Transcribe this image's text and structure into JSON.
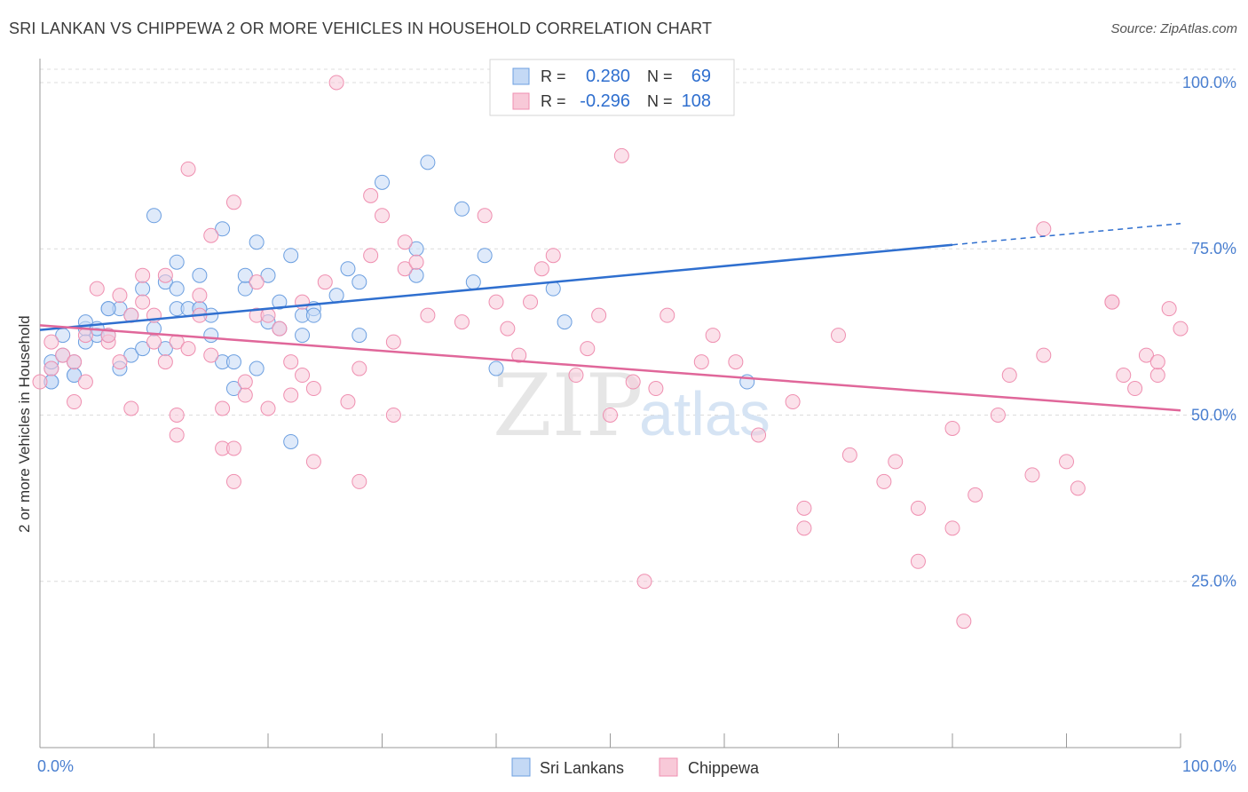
{
  "title": "SRI LANKAN VS CHIPPEWA 2 OR MORE VEHICLES IN HOUSEHOLD CORRELATION CHART",
  "source": "Source: ZipAtlas.com",
  "watermark": {
    "part1": "ZIP",
    "part2": "atlas"
  },
  "legend_box": {
    "rows": [
      {
        "r_label": "R =",
        "r_value": "0.280",
        "n_label": "N =",
        "n_value": "69",
        "color": "#6c9fe0"
      },
      {
        "r_label": "R =",
        "r_value": "-0.296",
        "n_label": "N =",
        "n_value": "108",
        "color": "#ef8fb0"
      }
    ]
  },
  "chart_data": {
    "type": "scatter",
    "title": "SRI LANKAN VS CHIPPEWA 2 OR MORE VEHICLES IN HOUSEHOLD CORRELATION CHART",
    "xlabel": "",
    "ylabel": "2 or more Vehicles in Household",
    "xlim": [
      0,
      100
    ],
    "ylim": [
      0,
      102
    ],
    "x_tick_labels": [
      "0.0%",
      "100.0%"
    ],
    "y_ticks": [
      25,
      50,
      75,
      100
    ],
    "y_tick_labels": [
      "25.0%",
      "50.0%",
      "75.0%",
      "100.0%"
    ],
    "grid": true,
    "legend_placement": "bottom-center",
    "series": [
      {
        "name": "Sri Lankans",
        "color": "#6c9fe0",
        "fill": "#c4d9f5",
        "R": 0.28,
        "N": 69,
        "trend": {
          "x0": 0,
          "y0": 62.8,
          "x1": 80,
          "y1": 75.6,
          "dashed_to_x": 100,
          "dashed_to_y": 78.8
        },
        "points": [
          [
            1,
            55
          ],
          [
            1,
            57
          ],
          [
            1,
            58
          ],
          [
            2,
            59
          ],
          [
            2,
            62
          ],
          [
            3,
            58
          ],
          [
            3,
            56
          ],
          [
            4,
            63
          ],
          [
            4,
            61
          ],
          [
            4,
            64
          ],
          [
            5,
            62
          ],
          [
            5,
            63
          ],
          [
            6,
            62
          ],
          [
            6,
            66
          ],
          [
            7,
            66
          ],
          [
            7,
            57
          ],
          [
            8,
            59
          ],
          [
            8,
            65
          ],
          [
            9,
            60
          ],
          [
            9,
            69
          ],
          [
            10,
            63
          ],
          [
            10,
            80
          ],
          [
            11,
            70
          ],
          [
            11,
            60
          ],
          [
            12,
            66
          ],
          [
            12,
            73
          ],
          [
            12,
            69
          ],
          [
            13,
            66
          ],
          [
            14,
            71
          ],
          [
            14,
            66
          ],
          [
            15,
            65
          ],
          [
            15,
            62
          ],
          [
            16,
            78
          ],
          [
            16,
            58
          ],
          [
            17,
            58
          ],
          [
            17,
            54
          ],
          [
            18,
            69
          ],
          [
            18,
            71
          ],
          [
            19,
            57
          ],
          [
            19,
            76
          ],
          [
            20,
            64
          ],
          [
            20,
            71
          ],
          [
            21,
            67
          ],
          [
            21,
            63
          ],
          [
            22,
            74
          ],
          [
            23,
            65
          ],
          [
            23,
            62
          ],
          [
            24,
            66
          ],
          [
            24,
            65
          ],
          [
            26,
            68
          ],
          [
            27,
            72
          ],
          [
            28,
            70
          ],
          [
            28,
            62
          ],
          [
            30,
            85
          ],
          [
            33,
            71
          ],
          [
            33,
            75
          ],
          [
            34,
            88
          ],
          [
            37,
            81
          ],
          [
            38,
            70
          ],
          [
            39,
            74
          ],
          [
            40,
            57
          ],
          [
            45,
            69
          ],
          [
            46,
            64
          ],
          [
            62,
            55
          ],
          [
            22,
            46
          ],
          [
            14,
            66
          ],
          [
            6,
            66
          ],
          [
            3,
            56
          ],
          [
            1,
            55
          ]
        ]
      },
      {
        "name": "Chippewa",
        "color": "#ef8fb0",
        "fill": "#f8c9d8",
        "R": -0.296,
        "N": 108,
        "trend": {
          "x0": 0,
          "y0": 63.5,
          "x1": 100,
          "y1": 50.7
        },
        "points": [
          [
            0,
            55
          ],
          [
            1,
            61
          ],
          [
            1,
            57
          ],
          [
            2,
            59
          ],
          [
            3,
            58
          ],
          [
            3,
            52
          ],
          [
            4,
            62
          ],
          [
            4,
            55
          ],
          [
            5,
            69
          ],
          [
            6,
            61
          ],
          [
            6,
            62
          ],
          [
            7,
            58
          ],
          [
            7,
            68
          ],
          [
            8,
            65
          ],
          [
            8,
            51
          ],
          [
            9,
            67
          ],
          [
            9,
            71
          ],
          [
            10,
            61
          ],
          [
            10,
            65
          ],
          [
            11,
            58
          ],
          [
            11,
            71
          ],
          [
            12,
            61
          ],
          [
            12,
            50
          ],
          [
            12,
            47
          ],
          [
            13,
            87
          ],
          [
            13,
            60
          ],
          [
            14,
            68
          ],
          [
            14,
            65
          ],
          [
            15,
            77
          ],
          [
            15,
            59
          ],
          [
            16,
            45
          ],
          [
            16,
            51
          ],
          [
            17,
            82
          ],
          [
            17,
            45
          ],
          [
            17,
            40
          ],
          [
            18,
            53
          ],
          [
            18,
            55
          ],
          [
            19,
            70
          ],
          [
            19,
            65
          ],
          [
            20,
            51
          ],
          [
            20,
            65
          ],
          [
            21,
            63
          ],
          [
            22,
            53
          ],
          [
            22,
            58
          ],
          [
            23,
            67
          ],
          [
            23,
            56
          ],
          [
            24,
            54
          ],
          [
            24,
            43
          ],
          [
            25,
            70
          ],
          [
            26,
            100
          ],
          [
            27,
            52
          ],
          [
            28,
            57
          ],
          [
            28,
            40
          ],
          [
            29,
            83
          ],
          [
            29,
            74
          ],
          [
            30,
            80
          ],
          [
            31,
            50
          ],
          [
            31,
            61
          ],
          [
            32,
            72
          ],
          [
            32,
            76
          ],
          [
            33,
            73
          ],
          [
            34,
            65
          ],
          [
            37,
            64
          ],
          [
            39,
            80
          ],
          [
            40,
            67
          ],
          [
            41,
            63
          ],
          [
            42,
            59
          ],
          [
            43,
            67
          ],
          [
            44,
            72
          ],
          [
            45,
            74
          ],
          [
            47,
            56
          ],
          [
            48,
            60
          ],
          [
            49,
            65
          ],
          [
            50,
            50
          ],
          [
            51,
            89
          ],
          [
            52,
            55
          ],
          [
            53,
            25
          ],
          [
            54,
            54
          ],
          [
            55,
            65
          ],
          [
            58,
            58
          ],
          [
            59,
            62
          ],
          [
            61,
            58
          ],
          [
            63,
            47
          ],
          [
            66,
            52
          ],
          [
            67,
            36
          ],
          [
            67,
            33
          ],
          [
            70,
            62
          ],
          [
            71,
            44
          ],
          [
            74,
            40
          ],
          [
            75,
            43
          ],
          [
            77,
            36
          ],
          [
            77,
            28
          ],
          [
            80,
            48
          ],
          [
            80,
            33
          ],
          [
            81,
            19
          ],
          [
            82,
            38
          ],
          [
            84,
            50
          ],
          [
            85,
            56
          ],
          [
            87,
            41
          ],
          [
            88,
            59
          ],
          [
            88,
            78
          ],
          [
            90,
            43
          ],
          [
            91,
            39
          ],
          [
            94,
            67
          ],
          [
            95,
            56
          ],
          [
            96,
            54
          ],
          [
            97,
            59
          ],
          [
            98,
            56
          ],
          [
            98,
            58
          ],
          [
            99,
            66
          ],
          [
            100,
            63
          ],
          [
            94,
            67
          ]
        ]
      }
    ]
  },
  "bottom_legend": [
    {
      "label": "Sri Lankans",
      "color": "#6c9fe0",
      "fill": "#c4d9f5"
    },
    {
      "label": "Chippewa",
      "color": "#ef8fb0",
      "fill": "#f8c9d8"
    }
  ]
}
